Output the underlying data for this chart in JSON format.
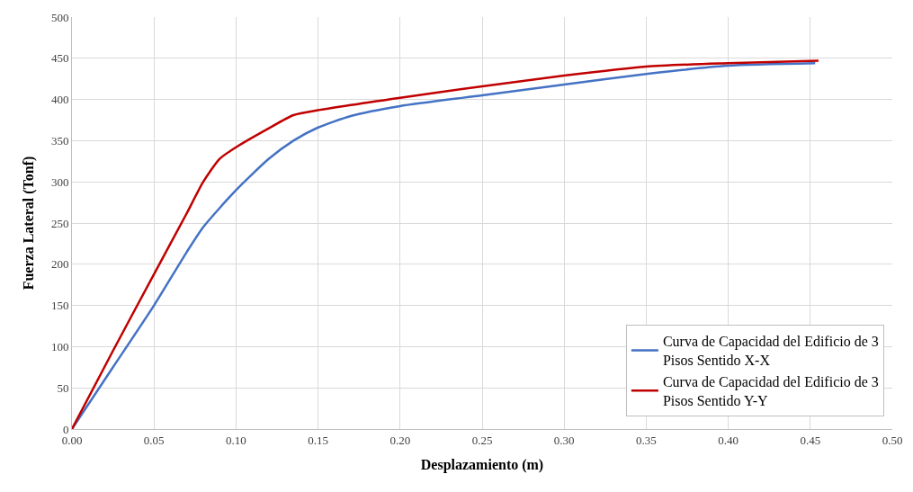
{
  "chart_data": {
    "type": "line",
    "xlabel": "Desplazamiento (m)",
    "ylabel": "Fuerza Lateral (Tonf)",
    "xlim": [
      0,
      0.5
    ],
    "xticks": [
      {
        "value": 0,
        "label": "0.00"
      },
      {
        "value": 0.05,
        "label": "0.05"
      },
      {
        "value": 0.1,
        "label": "0.10"
      },
      {
        "value": 0.15,
        "label": "0.15"
      },
      {
        "value": 0.2,
        "label": "0.20"
      },
      {
        "value": 0.25,
        "label": "0.25"
      },
      {
        "value": 0.3,
        "label": "0.30"
      },
      {
        "value": 0.35,
        "label": "0.35"
      },
      {
        "value": 0.4,
        "label": "0.40"
      },
      {
        "value": 0.45,
        "label": "0.45"
      },
      {
        "value": 0.5,
        "label": "0.50"
      }
    ],
    "ylim": [
      0,
      500
    ],
    "yticks": [
      0,
      50,
      100,
      150,
      200,
      250,
      300,
      350,
      400,
      450,
      500
    ],
    "grid": true,
    "legend": "bottom right",
    "marker": "none",
    "line_style": "solid",
    "series": [
      {
        "name": "Curva de Capacidad del Edificio de 3 Pisos Sentido X-X",
        "color": "#4472c4",
        "x": [
          0,
          0.025,
          0.05,
          0.07,
          0.08,
          0.1,
          0.12,
          0.135,
          0.15,
          0.17,
          0.2,
          0.25,
          0.3,
          0.35,
          0.4,
          0.453
        ],
        "values": [
          0,
          75,
          150,
          215,
          245,
          290,
          328,
          350,
          366,
          380,
          392,
          405,
          418,
          431,
          441,
          444
        ]
      },
      {
        "name": "Curva de Capacidad del Edificio de 3 Pisos Sentido Y-Y",
        "color": "#c00000",
        "x": [
          0,
          0.025,
          0.05,
          0.07,
          0.08,
          0.09,
          0.1,
          0.12,
          0.135,
          0.15,
          0.2,
          0.25,
          0.3,
          0.35,
          0.4,
          0.455
        ],
        "values": [
          0,
          95,
          188,
          262,
          300,
          328,
          342,
          365,
          381,
          387,
          402,
          416,
          429,
          440,
          444,
          447
        ]
      }
    ]
  }
}
